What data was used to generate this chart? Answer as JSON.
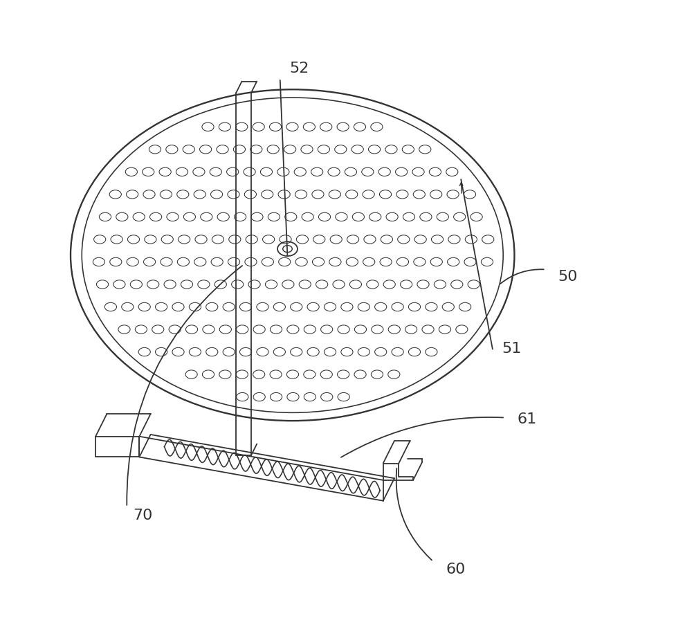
{
  "bg_color": "#ffffff",
  "line_color": "#333333",
  "label_color": "#333333",
  "figsize": [
    9.9,
    9.09
  ],
  "dpi": 100
}
